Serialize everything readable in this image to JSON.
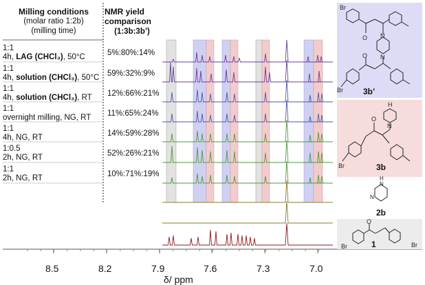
{
  "header": {
    "conditions_title": "Milling conditions",
    "conditions_sub1": "(molar ratio 1:2b)",
    "conditions_sub2": "(milling time)",
    "yield_title1": "NMR yield",
    "yield_title2": "comparison",
    "yield_sub": "(1:3b:3b’)"
  },
  "rows": [
    {
      "ratio": "1:1",
      "line2_pre": "4h, ",
      "line2_bold": "LAG (CHCl₃)",
      "line2_post": ", 50°C",
      "yield": "5%:80%:14%"
    },
    {
      "ratio": "1:1",
      "line2_pre": "4h, ",
      "line2_bold": "solution (CHCl₃)",
      "line2_post": ", 50°C",
      "yield": "59%:32%:9%"
    },
    {
      "ratio": "1:1",
      "line2_pre": "4h, ",
      "line2_bold": "solution (CHCl₃)",
      "line2_post": ", RT",
      "yield": "12%:66%:21%"
    },
    {
      "ratio": "1:1",
      "line2_pre": "overnight milling, NG, RT",
      "line2_bold": "",
      "line2_post": "",
      "yield": "11%:65%:24%"
    },
    {
      "ratio": "1:1",
      "line2_pre": "4h, NG, RT",
      "line2_bold": "",
      "line2_post": "",
      "yield": "14%:59%:28%"
    },
    {
      "ratio": "1:0.5",
      "line2_pre": "2h, NG, RT",
      "line2_bold": "",
      "line2_post": "",
      "yield": "52%:26%:21%"
    },
    {
      "ratio": "1:1",
      "line2_pre": "2h, NG, RT",
      "line2_bold": "",
      "line2_post": "",
      "yield": "10%:71%:19%"
    }
  ],
  "axis": {
    "ticks": [
      "8.5",
      "8.2",
      "7.9",
      "7.6",
      "7.3",
      "7.0"
    ],
    "label": "δ/ ppm"
  },
  "compounds": {
    "bisadduct": "3b’",
    "adduct": "3b",
    "piperazine": "2b",
    "chalcone": "1",
    "nh_label": "H",
    "nh_label2": "H",
    "br": "Br",
    "o": "O",
    "n": "N"
  },
  "colors": {
    "blue_band": "#c8c8f0",
    "red_band": "#f2c8c8",
    "grey_band": "#dcdcdc",
    "trace_purple": "#6a3d9a",
    "trace_blue": "#4a5aa8",
    "trace_green": "#4e9a3a",
    "trace_olive": "#8a7a2a",
    "trace_maroon": "#8b1a1a"
  }
}
